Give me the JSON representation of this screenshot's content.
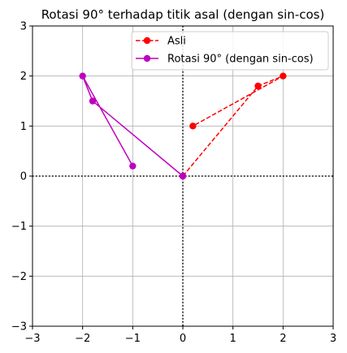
{
  "chart_data": {
    "type": "line",
    "title": "Rotasi 90° terhadap titik asal (dengan sin-cos)",
    "xlabel": "",
    "ylabel": "",
    "xlim": [
      -3,
      3
    ],
    "ylim": [
      -3,
      3
    ],
    "x_ticks": [
      -3,
      -2,
      -1,
      0,
      1,
      2,
      3
    ],
    "y_ticks": [
      -3,
      -2,
      -1,
      0,
      1,
      2,
      3
    ],
    "x_tick_labels": [
      "−3",
      "−2",
      "−1",
      "0",
      "1",
      "2",
      "3"
    ],
    "y_tick_labels": [
      "−3",
      "−2",
      "−1",
      "0",
      "1",
      "2",
      "3"
    ],
    "grid": true,
    "legend_position": "top-right",
    "reference_lines": [
      {
        "orientation": "horizontal",
        "value": 0,
        "style": "dotted",
        "color": "#000000"
      },
      {
        "orientation": "vertical",
        "value": 0,
        "style": "dotted",
        "color": "#000000"
      }
    ],
    "series": [
      {
        "name": "Asli",
        "color": "#ff0000",
        "line_style": "dashed",
        "marker": "circle",
        "x": [
          0,
          1.5,
          2,
          0.2
        ],
        "y": [
          0,
          1.8,
          2,
          1
        ]
      },
      {
        "name": "Rotasi 90° (dengan sin-cos)",
        "color": "#bf00bf",
        "line_style": "solid",
        "marker": "circle",
        "x": [
          0,
          -1.8,
          -2,
          -1
        ],
        "y": [
          0,
          1.5,
          2,
          0.2
        ]
      }
    ]
  }
}
